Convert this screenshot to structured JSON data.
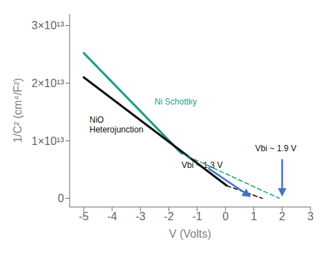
{
  "chart_data": {
    "type": "line",
    "title": "",
    "xlabel": "V (Volts)",
    "ylabel": "1/C² (cm⁴/F²)",
    "xlim": [
      -5.5,
      3.0
    ],
    "ylim": [
      -1500000000000.0,
      32000000000000.0
    ],
    "xticks": [
      -5,
      -4,
      -3,
      -2,
      -1,
      0,
      1,
      2,
      3
    ],
    "yticks": [
      0,
      {
        "value": 10000000000000.0,
        "label": "1×10¹³"
      },
      {
        "value": 20000000000000.0,
        "label": "2×10¹³"
      },
      {
        "value": 30000000000000.0,
        "label": "3×10¹³"
      }
    ],
    "series": [
      {
        "x": [
          -5.0,
          -1.55
        ],
        "values": [
          25200000000000.0,
          7800000000000.0
        ],
        "color": "#1e9e8f",
        "line_style": "solid"
      },
      {
        "x": [
          -5.0,
          0.05
        ],
        "values": [
          21000000000000.0,
          2200000000000.0
        ],
        "color": "#111111",
        "line_style": "solid"
      },
      {
        "x": [
          -1.55,
          1.9
        ],
        "values": [
          7800000000000.0,
          0.0
        ],
        "color": "#1e9e8f",
        "line_style": "dashed"
      },
      {
        "x": [
          0.05,
          1.3
        ],
        "values": [
          2200000000000.0,
          0.0
        ],
        "color": "#111111",
        "line_style": "dashed"
      }
    ],
    "arrows": [
      {
        "x": [
          -0.6,
          0.85
        ],
        "y": [
          5200000000000.0,
          400000000000.0
        ],
        "color": "#4472c4"
      },
      {
        "x": [
          2.0,
          2.0
        ],
        "y": [
          6800000000000.0,
          600000000000.0
        ],
        "color": "#4472c4"
      }
    ],
    "annotations": [
      {
        "text": "Ni Schottky",
        "x": -2.5,
        "y": 16800000000000.0,
        "color": "#1e9e8f"
      },
      {
        "text": "NiO\nHeterojunction",
        "x": -4.8,
        "y": 12800000000000.0,
        "color": "#111111"
      },
      {
        "text": "Vbi ~ 1.3 V",
        "x": -1.55,
        "y": 5800000000000.0,
        "color": "#111111"
      },
      {
        "text": "Vbi ~ 1.9 V",
        "x": 1.05,
        "y": 8600000000000.0,
        "color": "#111111"
      }
    ]
  }
}
